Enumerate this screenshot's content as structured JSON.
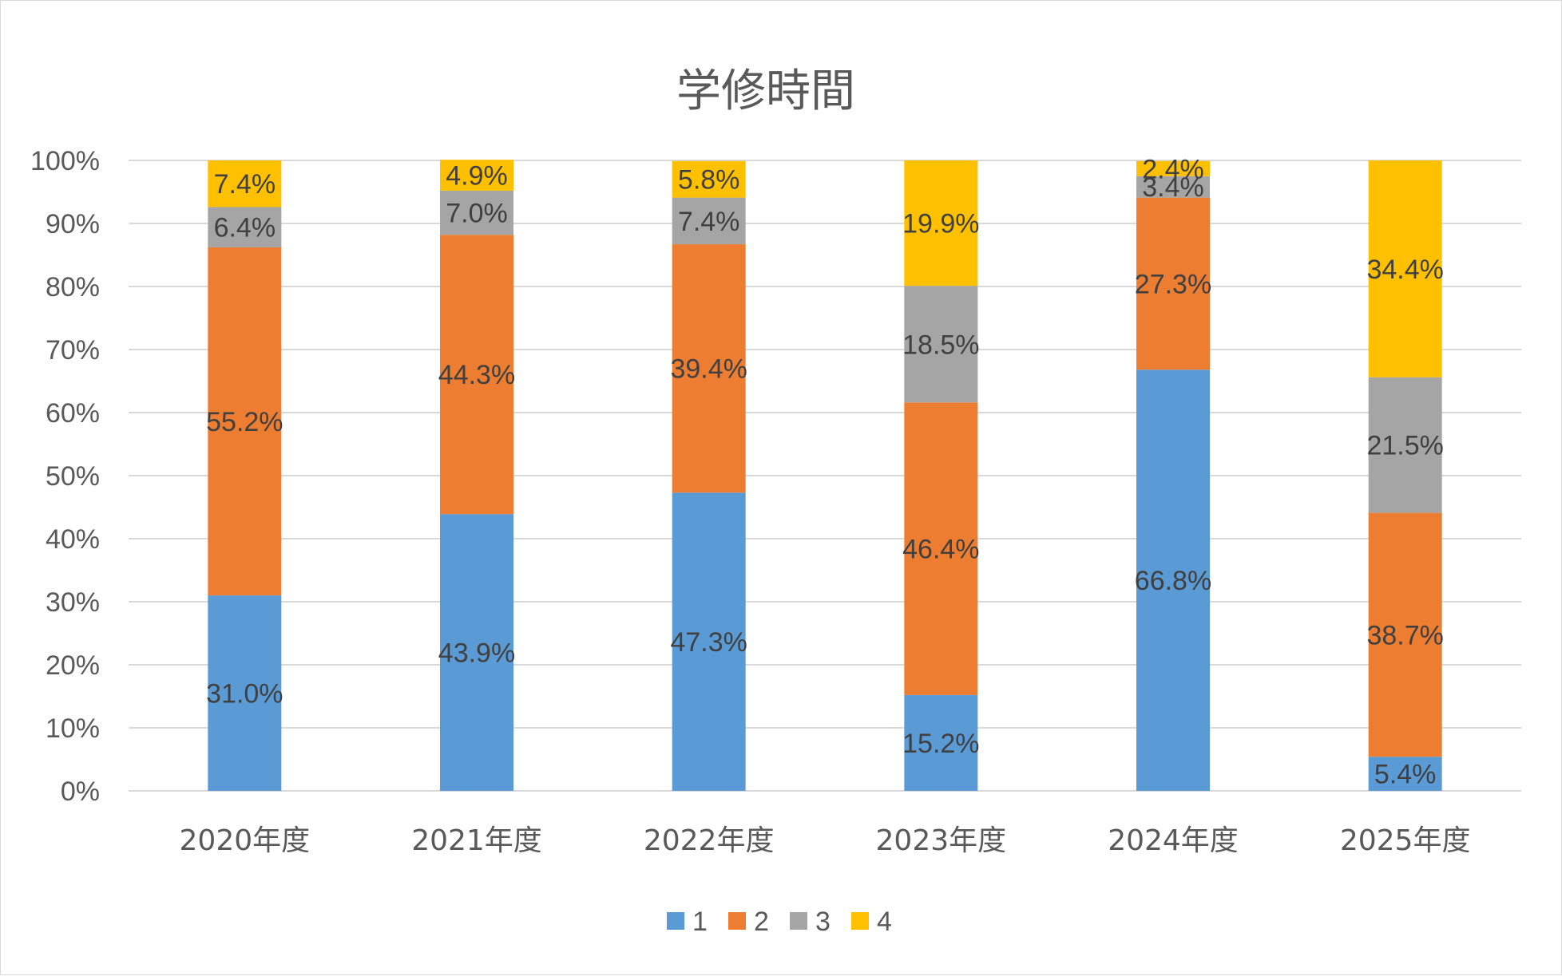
{
  "chart_data": {
    "type": "bar",
    "stacked": true,
    "percent_stacked": true,
    "title": "学修時間",
    "categories": [
      "2020年度",
      "2021年度",
      "2022年度",
      "2023年度",
      "2024年度",
      "2025年度"
    ],
    "series": [
      {
        "name": "1",
        "color": "#5B9BD5",
        "values": [
          31.0,
          43.9,
          47.3,
          15.2,
          66.8,
          5.4
        ],
        "labels": [
          "31.0%",
          "43.9%",
          "47.3%",
          "15.2%",
          "66.8%",
          "5.4%"
        ]
      },
      {
        "name": "2",
        "color": "#ED7D31",
        "values": [
          55.2,
          44.3,
          39.4,
          46.4,
          27.3,
          38.7
        ],
        "labels": [
          "55.2%",
          "44.3%",
          "39.4%",
          "46.4%",
          "27.3%",
          "38.7%"
        ]
      },
      {
        "name": "3",
        "color": "#A5A5A5",
        "values": [
          6.4,
          7.0,
          7.4,
          18.5,
          3.4,
          21.5
        ],
        "labels": [
          "6.4%",
          "7.0%",
          "7.4%",
          "18.5%",
          "3.4%",
          "21.5%"
        ]
      },
      {
        "name": "4",
        "color": "#FFC000",
        "values": [
          7.4,
          4.9,
          5.8,
          19.9,
          2.4,
          34.4
        ],
        "labels": [
          "7.4%",
          "4.9%",
          "5.8%",
          "19.9%",
          "2.4%",
          "34.4%"
        ]
      }
    ],
    "ylim": [
      0,
      100
    ],
    "yticks": [
      "0%",
      "10%",
      "20%",
      "30%",
      "40%",
      "50%",
      "60%",
      "70%",
      "80%",
      "90%",
      "100%"
    ],
    "grid": true,
    "legend": "bottom"
  }
}
